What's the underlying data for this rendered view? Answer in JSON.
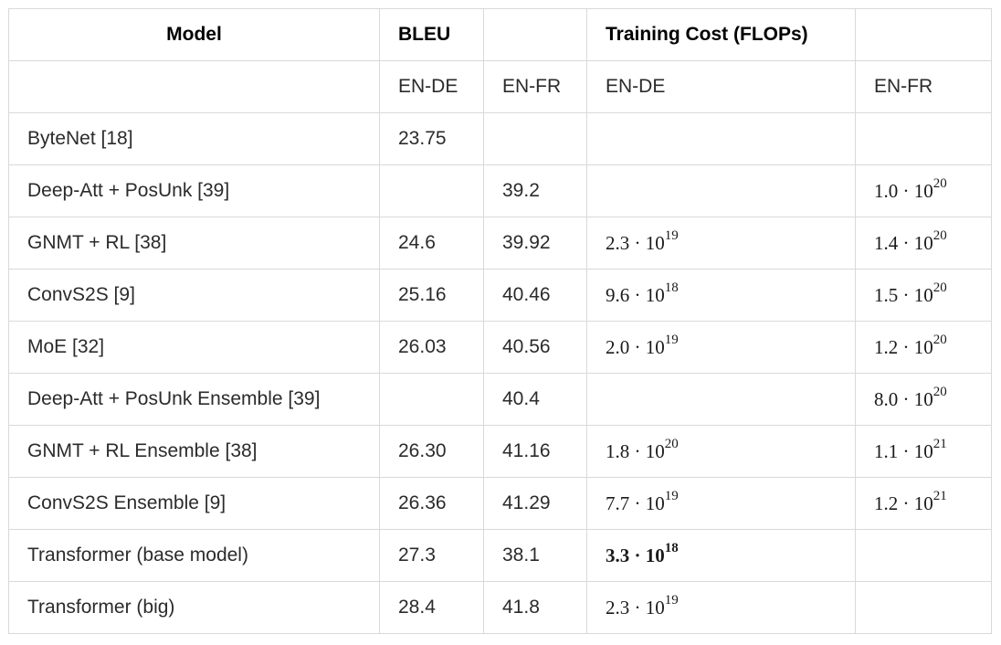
{
  "table": {
    "headers": {
      "model": "Model",
      "bleu": "BLEU",
      "blank": "",
      "training_cost": "Training Cost (FLOPs)",
      "blank2": ""
    },
    "subheaders": [
      "",
      "EN-DE",
      "EN-FR",
      "EN-DE",
      "EN-FR"
    ],
    "rows": [
      {
        "model": "ByteNet [18]",
        "bleu_de": "23.75",
        "bleu_fr": "",
        "cost_de": {
          "m": "",
          "e": ""
        },
        "cost_fr": {
          "m": "",
          "e": ""
        }
      },
      {
        "model": "Deep-Att + PosUnk [39]",
        "bleu_de": "",
        "bleu_fr": "39.2",
        "cost_de": {
          "m": "",
          "e": ""
        },
        "cost_fr": {
          "m": "1.0 · 10",
          "e": "20"
        }
      },
      {
        "model": "GNMT + RL [38]",
        "bleu_de": "24.6",
        "bleu_fr": "39.92",
        "cost_de": {
          "m": "2.3 · 10",
          "e": "19"
        },
        "cost_fr": {
          "m": "1.4 · 10",
          "e": "20"
        }
      },
      {
        "model": "ConvS2S [9]",
        "bleu_de": "25.16",
        "bleu_fr": "40.46",
        "cost_de": {
          "m": "9.6 · 10",
          "e": "18"
        },
        "cost_fr": {
          "m": "1.5 · 10",
          "e": "20"
        }
      },
      {
        "model": "MoE [32]",
        "bleu_de": "26.03",
        "bleu_fr": "40.56",
        "cost_de": {
          "m": "2.0 · 10",
          "e": "19"
        },
        "cost_fr": {
          "m": "1.2 · 10",
          "e": "20"
        }
      },
      {
        "model": "Deep-Att + PosUnk Ensemble [39]",
        "bleu_de": "",
        "bleu_fr": "40.4",
        "cost_de": {
          "m": "",
          "e": ""
        },
        "cost_fr": {
          "m": "8.0 · 10",
          "e": "20"
        }
      },
      {
        "model": "GNMT + RL Ensemble [38]",
        "bleu_de": "26.30",
        "bleu_fr": "41.16",
        "cost_de": {
          "m": "1.8 · 10",
          "e": "20"
        },
        "cost_fr": {
          "m": "1.1 · 10",
          "e": "21"
        }
      },
      {
        "model": "ConvS2S Ensemble [9]",
        "bleu_de": "26.36",
        "bleu_fr": "41.29",
        "cost_de": {
          "m": "7.7 · 10",
          "e": "19"
        },
        "cost_fr": {
          "m": "1.2 · 10",
          "e": "21"
        }
      },
      {
        "model": "Transformer (base model)",
        "bleu_de": "27.3",
        "bleu_fr": "38.1",
        "cost_de": {
          "m": "3.3 · 10",
          "e": "18"
        },
        "cost_fr": {
          "m": "",
          "e": ""
        }
      },
      {
        "model": "Transformer (big)",
        "bleu_de": "28.4",
        "bleu_fr": "41.8",
        "cost_de": {
          "m": "2.3 · 10",
          "e": "19"
        },
        "cost_fr": {
          "m": "",
          "e": ""
        }
      }
    ]
  }
}
